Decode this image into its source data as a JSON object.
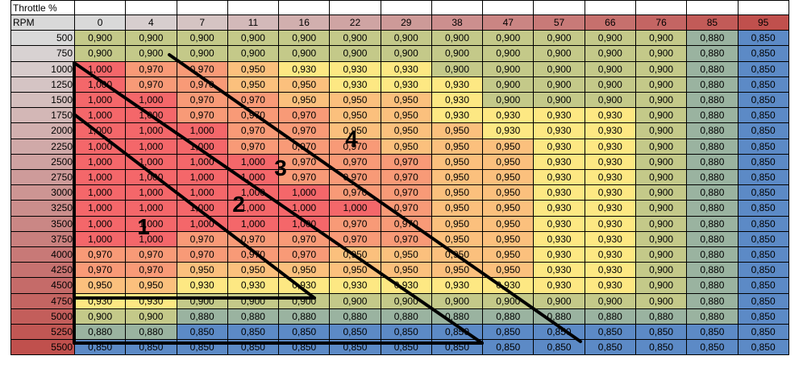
{
  "header": {
    "title": "Throttle %",
    "rpm_label": "RPM"
  },
  "throttle": [
    "0",
    "4",
    "7",
    "11",
    "16",
    "22",
    "29",
    "38",
    "47",
    "57",
    "66",
    "76",
    "85",
    "95"
  ],
  "rows": [
    {
      "rpm": "500",
      "values": [
        "0,900",
        "0,900",
        "0,900",
        "0,900",
        "0,900",
        "0,900",
        "0,900",
        "0,900",
        "0,900",
        "0,900",
        "0,900",
        "0,900",
        "0,880",
        "0,850"
      ]
    },
    {
      "rpm": "750",
      "values": [
        "0,900",
        "0,900",
        "0,900",
        "0,900",
        "0,900",
        "0,900",
        "0,900",
        "0,900",
        "0,900",
        "0,900",
        "0,900",
        "0,900",
        "0,880",
        "0,850"
      ]
    },
    {
      "rpm": "1000",
      "values": [
        "1,000",
        "0,970",
        "0,970",
        "0,950",
        "0,930",
        "0,930",
        "0,930",
        "0,900",
        "0,900",
        "0,900",
        "0,900",
        "0,900",
        "0,880",
        "0,850"
      ]
    },
    {
      "rpm": "1250",
      "values": [
        "1,000",
        "0,970",
        "0,970",
        "0,950",
        "0,950",
        "0,930",
        "0,930",
        "0,930",
        "0,900",
        "0,900",
        "0,900",
        "0,900",
        "0,880",
        "0,850"
      ]
    },
    {
      "rpm": "1500",
      "values": [
        "1,000",
        "1,000",
        "0,970",
        "0,970",
        "0,950",
        "0,950",
        "0,950",
        "0,930",
        "0,900",
        "0,900",
        "0,900",
        "0,900",
        "0,880",
        "0,850"
      ]
    },
    {
      "rpm": "1750",
      "values": [
        "1,000",
        "1,000",
        "0,970",
        "0,970",
        "0,970",
        "0,950",
        "0,950",
        "0,930",
        "0,930",
        "0,930",
        "0,930",
        "0,900",
        "0,880",
        "0,850"
      ]
    },
    {
      "rpm": "2000",
      "values": [
        "1,000",
        "1,000",
        "1,000",
        "0,970",
        "0,970",
        "0,950",
        "0,950",
        "0,950",
        "0,930",
        "0,930",
        "0,930",
        "0,900",
        "0,880",
        "0,850"
      ]
    },
    {
      "rpm": "2250",
      "values": [
        "1,000",
        "1,000",
        "1,000",
        "0,970",
        "0,970",
        "0,970",
        "0,950",
        "0,950",
        "0,950",
        "0,930",
        "0,930",
        "0,900",
        "0,880",
        "0,850"
      ]
    },
    {
      "rpm": "2500",
      "values": [
        "1,000",
        "1,000",
        "1,000",
        "1,000",
        "0,970",
        "0,970",
        "0,970",
        "0,950",
        "0,950",
        "0,930",
        "0,930",
        "0,900",
        "0,880",
        "0,850"
      ]
    },
    {
      "rpm": "2750",
      "values": [
        "1,000",
        "1,000",
        "1,000",
        "1,000",
        "0,970",
        "0,970",
        "0,970",
        "0,950",
        "0,950",
        "0,930",
        "0,930",
        "0,900",
        "0,880",
        "0,850"
      ]
    },
    {
      "rpm": "3000",
      "values": [
        "1,000",
        "1,000",
        "1,000",
        "1,000",
        "1,000",
        "0,970",
        "0,970",
        "0,950",
        "0,950",
        "0,930",
        "0,930",
        "0,900",
        "0,880",
        "0,850"
      ]
    },
    {
      "rpm": "3250",
      "values": [
        "1,000",
        "1,000",
        "1,000",
        "1,000",
        "1,000",
        "1,000",
        "0,970",
        "0,950",
        "0,950",
        "0,930",
        "0,930",
        "0,900",
        "0,880",
        "0,850"
      ]
    },
    {
      "rpm": "3500",
      "values": [
        "1,000",
        "1,000",
        "1,000",
        "1,000",
        "1,000",
        "0,970",
        "0,970",
        "0,950",
        "0,950",
        "0,930",
        "0,930",
        "0,900",
        "0,880",
        "0,850"
      ]
    },
    {
      "rpm": "3750",
      "values": [
        "1,000",
        "1,000",
        "0,970",
        "0,970",
        "0,970",
        "0,970",
        "0,970",
        "0,950",
        "0,950",
        "0,930",
        "0,930",
        "0,900",
        "0,880",
        "0,850"
      ]
    },
    {
      "rpm": "4000",
      "values": [
        "0,970",
        "0,970",
        "0,970",
        "0,970",
        "0,970",
        "0,950",
        "0,950",
        "0,950",
        "0,950",
        "0,930",
        "0,930",
        "0,900",
        "0,880",
        "0,850"
      ]
    },
    {
      "rpm": "4250",
      "values": [
        "0,970",
        "0,970",
        "0,950",
        "0,950",
        "0,950",
        "0,950",
        "0,950",
        "0,950",
        "0,950",
        "0,930",
        "0,930",
        "0,900",
        "0,880",
        "0,850"
      ]
    },
    {
      "rpm": "4500",
      "values": [
        "0,950",
        "0,950",
        "0,930",
        "0,930",
        "0,930",
        "0,930",
        "0,930",
        "0,930",
        "0,930",
        "0,930",
        "0,930",
        "0,900",
        "0,880",
        "0,850"
      ]
    },
    {
      "rpm": "4750",
      "values": [
        "0,930",
        "0,930",
        "0,900",
        "0,900",
        "0,900",
        "0,900",
        "0,900",
        "0,900",
        "0,900",
        "0,900",
        "0,900",
        "0,900",
        "0,880",
        "0,850"
      ]
    },
    {
      "rpm": "5000",
      "values": [
        "0,900",
        "0,900",
        "0,880",
        "0,880",
        "0,880",
        "0,880",
        "0,880",
        "0,880",
        "0,880",
        "0,880",
        "0,880",
        "0,880",
        "0,880",
        "0,850"
      ]
    },
    {
      "rpm": "5250",
      "values": [
        "0,880",
        "0,880",
        "0,850",
        "0,850",
        "0,850",
        "0,850",
        "0,850",
        "0,850",
        "0,850",
        "0,850",
        "0,850",
        "0,850",
        "0,850",
        "0,850"
      ]
    },
    {
      "rpm": "5500",
      "values": [
        "0,850",
        "0,850",
        "0,850",
        "0,850",
        "0,850",
        "0,850",
        "0,850",
        "0,850",
        "0,850",
        "0,850",
        "0,850",
        "0,850",
        "0,850",
        "0,850"
      ]
    }
  ],
  "value_colors": {
    "1,000": "#f4676a",
    "0,970": "#f89a77",
    "0,950": "#fbc07d",
    "0,930": "#fde883",
    "0,900": "#c4c989",
    "0,880": "#9ab3a0",
    "0,850": "#5c8ac6"
  },
  "annotations": [
    {
      "label": "1"
    },
    {
      "label": "2"
    },
    {
      "label": "3"
    },
    {
      "label": "4"
    }
  ]
}
